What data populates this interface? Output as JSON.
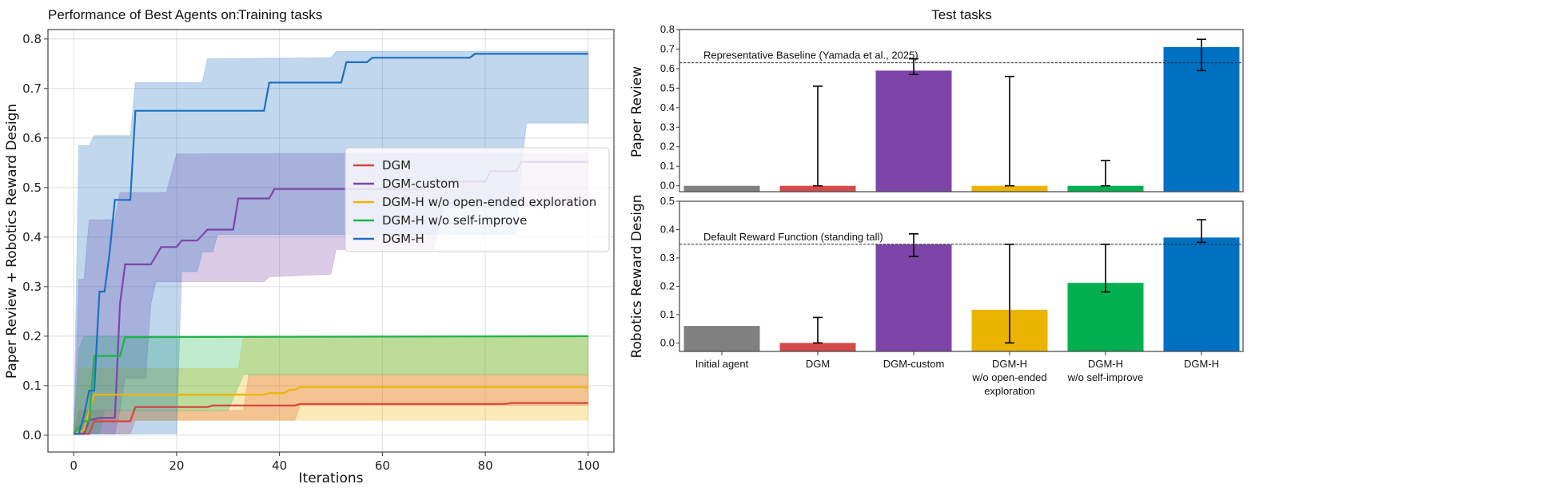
{
  "header": {
    "prefix": "Performance of Best Agents on:"
  },
  "chart_data": [
    {
      "type": "line",
      "title": "Training tasks",
      "xlabel": "Iterations",
      "ylabel": "Paper Review + Robotics Reward Design",
      "xlim": [
        -5,
        105
      ],
      "ylim": [
        -0.034,
        0.819
      ],
      "xticks": [
        0,
        20,
        40,
        60,
        80,
        100
      ],
      "yticks": [
        0.0,
        0.1,
        0.2,
        0.3,
        0.4,
        0.5,
        0.6,
        0.7,
        0.8
      ],
      "grid": true,
      "legend_position": "center-right",
      "step": true,
      "series": [
        {
          "name": "DGM",
          "color": "#d64541",
          "points": [
            [
              0,
              0.003
            ],
            [
              3,
              0.003
            ],
            [
              4,
              0.028
            ],
            [
              11,
              0.028
            ],
            [
              12,
              0.057
            ],
            [
              26,
              0.057
            ],
            [
              27,
              0.06
            ],
            [
              43,
              0.06
            ],
            [
              44,
              0.063
            ],
            [
              84,
              0.063
            ],
            [
              85,
              0.065
            ],
            [
              100,
              0.065
            ]
          ],
          "upper": [
            [
              0,
              0.003
            ],
            [
              1,
              0.05
            ],
            [
              33,
              0.05
            ],
            [
              34,
              0.122
            ],
            [
              100,
              0.122
            ]
          ],
          "lower": [
            [
              0,
              0.003
            ],
            [
              11,
              0.003
            ],
            [
              12,
              0.03
            ],
            [
              43,
              0.03
            ],
            [
              44,
              0.06
            ],
            [
              100,
              0.06
            ]
          ]
        },
        {
          "name": "DGM-custom",
          "color": "#7e44a8",
          "points": [
            [
              0,
              0.003
            ],
            [
              2,
              0.003
            ],
            [
              3,
              0.03
            ],
            [
              5,
              0.035
            ],
            [
              8,
              0.035
            ],
            [
              9,
              0.265
            ],
            [
              10,
              0.345
            ],
            [
              15,
              0.345
            ],
            [
              17,
              0.38
            ],
            [
              20,
              0.38
            ],
            [
              21,
              0.393
            ],
            [
              24,
              0.393
            ],
            [
              26,
              0.415
            ],
            [
              31,
              0.415
            ],
            [
              32,
              0.478
            ],
            [
              38,
              0.478
            ],
            [
              39,
              0.497
            ],
            [
              68,
              0.497
            ],
            [
              69,
              0.512
            ],
            [
              80,
              0.512
            ],
            [
              81,
              0.533
            ],
            [
              86,
              0.533
            ],
            [
              87,
              0.552
            ],
            [
              100,
              0.552
            ]
          ],
          "upper": [
            [
              0,
              0.003
            ],
            [
              1,
              0.315
            ],
            [
              2,
              0.315
            ],
            [
              3,
              0.435
            ],
            [
              8,
              0.435
            ],
            [
              9,
              0.49
            ],
            [
              18,
              0.49
            ],
            [
              20,
              0.568
            ],
            [
              100,
              0.57
            ]
          ],
          "lower": [
            [
              0,
              0.003
            ],
            [
              8,
              0.003
            ],
            [
              9,
              0.05
            ],
            [
              10,
              0.115
            ],
            [
              14,
              0.115
            ],
            [
              15,
              0.265
            ],
            [
              16,
              0.31
            ],
            [
              37,
              0.31
            ],
            [
              38,
              0.32
            ],
            [
              50,
              0.325
            ],
            [
              51,
              0.375
            ],
            [
              70,
              0.375
            ],
            [
              72,
              0.46
            ],
            [
              100,
              0.46
            ]
          ]
        },
        {
          "name": "DGM-H w/o open-ended exploration",
          "color": "#f0b400",
          "points": [
            [
              0,
              0.003
            ],
            [
              2,
              0.01
            ],
            [
              3,
              0.05
            ],
            [
              4,
              0.082
            ],
            [
              37,
              0.082
            ],
            [
              38,
              0.085
            ],
            [
              41,
              0.085
            ],
            [
              42,
              0.092
            ],
            [
              43,
              0.092
            ],
            [
              44,
              0.097
            ],
            [
              100,
              0.097
            ]
          ],
          "upper": [
            [
              0,
              0.003
            ],
            [
              1,
              0.135
            ],
            [
              32,
              0.135
            ],
            [
              33,
              0.2
            ],
            [
              100,
              0.2
            ]
          ],
          "lower": [
            [
              0,
              0.003
            ],
            [
              3,
              0.003
            ],
            [
              4,
              0.03
            ],
            [
              100,
              0.03
            ]
          ]
        },
        {
          "name": "DGM-H w/o self-improve",
          "color": "#1db34a",
          "points": [
            [
              0,
              0.003
            ],
            [
              2,
              0.028
            ],
            [
              3,
              0.028
            ],
            [
              4,
              0.16
            ],
            [
              9,
              0.16
            ],
            [
              10,
              0.198
            ],
            [
              100,
              0.2
            ]
          ],
          "upper": [
            [
              0,
              0.003
            ],
            [
              1,
              0.175
            ],
            [
              2,
              0.2
            ],
            [
              100,
              0.2
            ]
          ],
          "lower": [
            [
              0,
              0.003
            ],
            [
              5,
              0.003
            ],
            [
              6,
              0.05
            ],
            [
              30,
              0.05
            ],
            [
              33,
              0.122
            ],
            [
              100,
              0.122
            ]
          ]
        },
        {
          "name": "DGM-H",
          "color": "#1f6fc1",
          "points": [
            [
              0,
              0.003
            ],
            [
              1,
              0.003
            ],
            [
              2,
              0.04
            ],
            [
              3,
              0.09
            ],
            [
              4,
              0.09
            ],
            [
              5,
              0.29
            ],
            [
              6,
              0.29
            ],
            [
              7,
              0.37
            ],
            [
              8,
              0.475
            ],
            [
              11,
              0.475
            ],
            [
              12,
              0.655
            ],
            [
              37,
              0.655
            ],
            [
              38,
              0.712
            ],
            [
              52,
              0.712
            ],
            [
              53,
              0.753
            ],
            [
              57,
              0.753
            ],
            [
              58,
              0.762
            ],
            [
              77,
              0.762
            ],
            [
              78,
              0.77
            ],
            [
              100,
              0.77
            ]
          ],
          "upper": [
            [
              0,
              0.003
            ],
            [
              1,
              0.585
            ],
            [
              3,
              0.585
            ],
            [
              4,
              0.605
            ],
            [
              11,
              0.605
            ],
            [
              12,
              0.712
            ],
            [
              25,
              0.712
            ],
            [
              26,
              0.76
            ],
            [
              50,
              0.762
            ],
            [
              51,
              0.775
            ],
            [
              100,
              0.775
            ]
          ],
          "lower": [
            [
              0,
              0.003
            ],
            [
              20,
              0.003
            ],
            [
              21,
              0.33
            ],
            [
              24,
              0.33
            ],
            [
              25,
              0.37
            ],
            [
              27,
              0.37
            ],
            [
              28,
              0.405
            ],
            [
              86,
              0.405
            ],
            [
              87,
              0.54
            ],
            [
              88,
              0.63
            ],
            [
              100,
              0.63
            ]
          ]
        }
      ]
    },
    {
      "type": "bar",
      "title": "Test tasks",
      "ylabel": "Paper Review",
      "ylim": [
        -0.03,
        0.8
      ],
      "yticks": [
        0.0,
        0.1,
        0.2,
        0.3,
        0.4,
        0.5,
        0.6,
        0.7,
        0.8
      ],
      "categories": [
        "Initial agent",
        "DGM",
        "DGM-custom",
        "DGM-H\nw/o open-ended\nexploration",
        "DGM-H\nw/o self-improve",
        "DGM-H"
      ],
      "colors": [
        "#808080",
        "#d44a4a",
        "#7d45a8",
        "#ebb400",
        "#00b050",
        "#0070c0"
      ],
      "values": [
        0.0,
        0.0,
        0.59,
        0.0,
        0.0,
        0.71
      ],
      "error_ranges": [
        null,
        [
          0.0,
          0.51
        ],
        [
          0.57,
          0.65
        ],
        [
          0.0,
          0.56
        ],
        [
          0.0,
          0.13
        ],
        [
          0.59,
          0.75
        ]
      ],
      "reference_line": {
        "value": 0.63,
        "label": "Representative Baseline (Yamada et al., 2025)"
      }
    },
    {
      "type": "bar",
      "ylabel": "Robotics Reward Design",
      "ylim": [
        -0.03,
        0.5
      ],
      "yticks": [
        0.0,
        0.1,
        0.2,
        0.3,
        0.4,
        0.5
      ],
      "categories": [
        "Initial agent",
        "DGM",
        "DGM-custom",
        "DGM-H\nw/o open-ended\nexploration",
        "DGM-H\nw/o self-improve",
        "DGM-H"
      ],
      "colors": [
        "#808080",
        "#d44a4a",
        "#7d45a8",
        "#ebb400",
        "#00b050",
        "#0070c0"
      ],
      "values": [
        0.06,
        0.0,
        0.348,
        0.117,
        0.212,
        0.372
      ],
      "error_ranges": [
        null,
        [
          0.0,
          0.09
        ],
        [
          0.305,
          0.385
        ],
        [
          0.0,
          0.348
        ],
        [
          0.18,
          0.348
        ],
        [
          0.355,
          0.435
        ]
      ],
      "reference_line": {
        "value": 0.348,
        "label": "Default Reward Function (standing tall)"
      }
    }
  ]
}
